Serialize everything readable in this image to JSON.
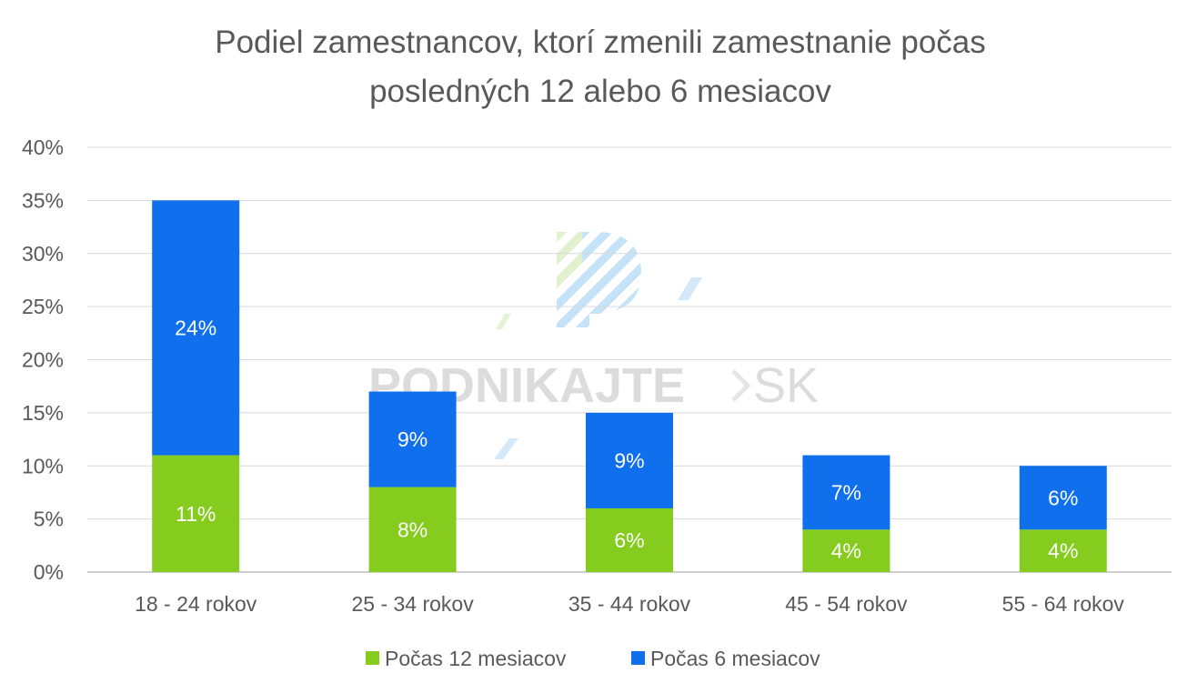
{
  "chart_data": {
    "type": "bar",
    "stacked": true,
    "title_lines": [
      "Podiel zamestnancov, ktorí zmenili zamestnanie počas",
      "posledných 12 alebo 6 mesiacov"
    ],
    "categories": [
      "18 - 24 rokov",
      "25 - 34 rokov",
      "35 - 44 rokov",
      "45 - 54 rokov",
      "55 - 64 rokov"
    ],
    "series": [
      {
        "name": "Počas 12 mesiacov",
        "values": [
          11,
          8,
          6,
          4,
          4
        ],
        "labels": [
          "11%",
          "8%",
          "6%",
          "4%",
          "4%"
        ],
        "color": "#86cc1e"
      },
      {
        "name": "Počas 6 mesiacov",
        "values": [
          24,
          9,
          9,
          7,
          6
        ],
        "labels": [
          "24%",
          "9%",
          "9%",
          "7%",
          "6%"
        ],
        "color": "#0f6fec"
      }
    ],
    "y_ticks": [
      "0%",
      "5%",
      "10%",
      "15%",
      "20%",
      "25%",
      "30%",
      "35%",
      "40%"
    ],
    "ylim": [
      0,
      40
    ],
    "grid": true,
    "legend_position": "bottom"
  },
  "watermark": {
    "text_bold": "PODNIKAJTE",
    "text_light": "SK",
    "colors": [
      "#b9dcf7",
      "#d9ecc0"
    ]
  }
}
